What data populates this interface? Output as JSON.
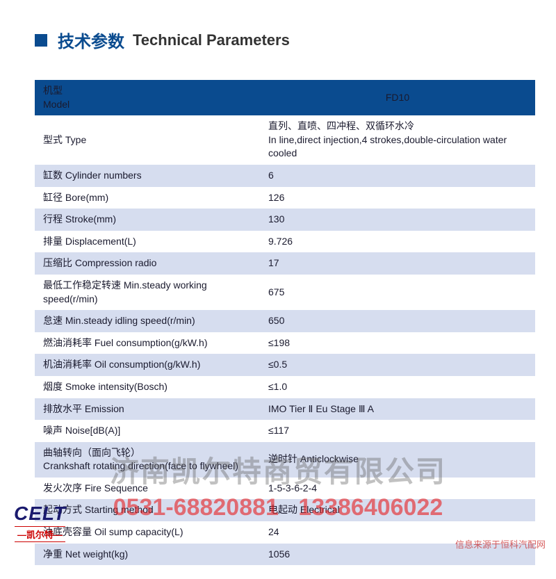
{
  "heading": {
    "cn": "技术参数",
    "en": "Technical Parameters"
  },
  "table": {
    "header_left_cn": "机型",
    "header_left_en": "Model",
    "header_right": "FD10",
    "rows": [
      {
        "label": "型式 Type",
        "value_cn": "直列、直喷、四冲程、双循环水冷",
        "value_en": "In line,direct injection,4 strokes,double-circulation water cooled",
        "alt": false
      },
      {
        "label": "缸数 Cylinder numbers",
        "value": "6",
        "alt": true
      },
      {
        "label": "缸径 Bore(mm)",
        "value": "126",
        "alt": false
      },
      {
        "label": "行程 Stroke(mm)",
        "value": "130",
        "alt": true
      },
      {
        "label": "排量 Displacement(L)",
        "value": "9.726",
        "alt": false
      },
      {
        "label": "压缩比 Compression radio",
        "value": "17",
        "alt": true
      },
      {
        "label": "最低工作稳定转速 Min.steady working speed(r/min)",
        "value": "675",
        "alt": false
      },
      {
        "label": "怠速 Min.steady idling speed(r/min)",
        "value": "650",
        "alt": true
      },
      {
        "label": "燃油消耗率 Fuel consumption(g/kW.h)",
        "value": "≤198",
        "alt": false
      },
      {
        "label": "机油消耗率 Oil consumption(g/kW.h)",
        "value": "≤0.5",
        "alt": true
      },
      {
        "label": "烟度 Smoke intensity(Bosch)",
        "value": "≤1.0",
        "alt": false
      },
      {
        "label": "排放水平 Emission",
        "value": "IMO Tier Ⅱ Eu Stage Ⅲ A",
        "alt": true
      },
      {
        "label": "噪声 Noise[dB(A)]",
        "value": "≤117",
        "alt": false
      },
      {
        "label_cn": "曲轴转向（面向飞轮）",
        "label_en": "Crankshaft rotating direction(face to flywheel)",
        "value": "逆时针 Anticlockwise",
        "alt": true
      },
      {
        "label": "发火次序 Fire Sequence",
        "value": "1-5-3-6-2-4",
        "alt": false
      },
      {
        "label": "起动方式 Starting method",
        "value": "电起动 Electrical",
        "alt": true
      },
      {
        "label": "油底壳容量 Oil sump capacity(L)",
        "value": "24",
        "alt": false
      },
      {
        "label": "净重 Net weight(kg)",
        "value": "1056",
        "alt": true
      }
    ]
  },
  "watermark": {
    "company": "济南凯尔特商贸有限公司",
    "phone1": "0531-68820881",
    "phone2": "13386406022"
  },
  "logo": {
    "text": "CELT",
    "sub": "凯尔特"
  },
  "footer_note": "信息来源于恒科汽配网",
  "colors": {
    "primary": "#0a4b8f",
    "row_alt": "#d6ddef",
    "watermark_red": "rgba(230,30,30,0.6)"
  }
}
